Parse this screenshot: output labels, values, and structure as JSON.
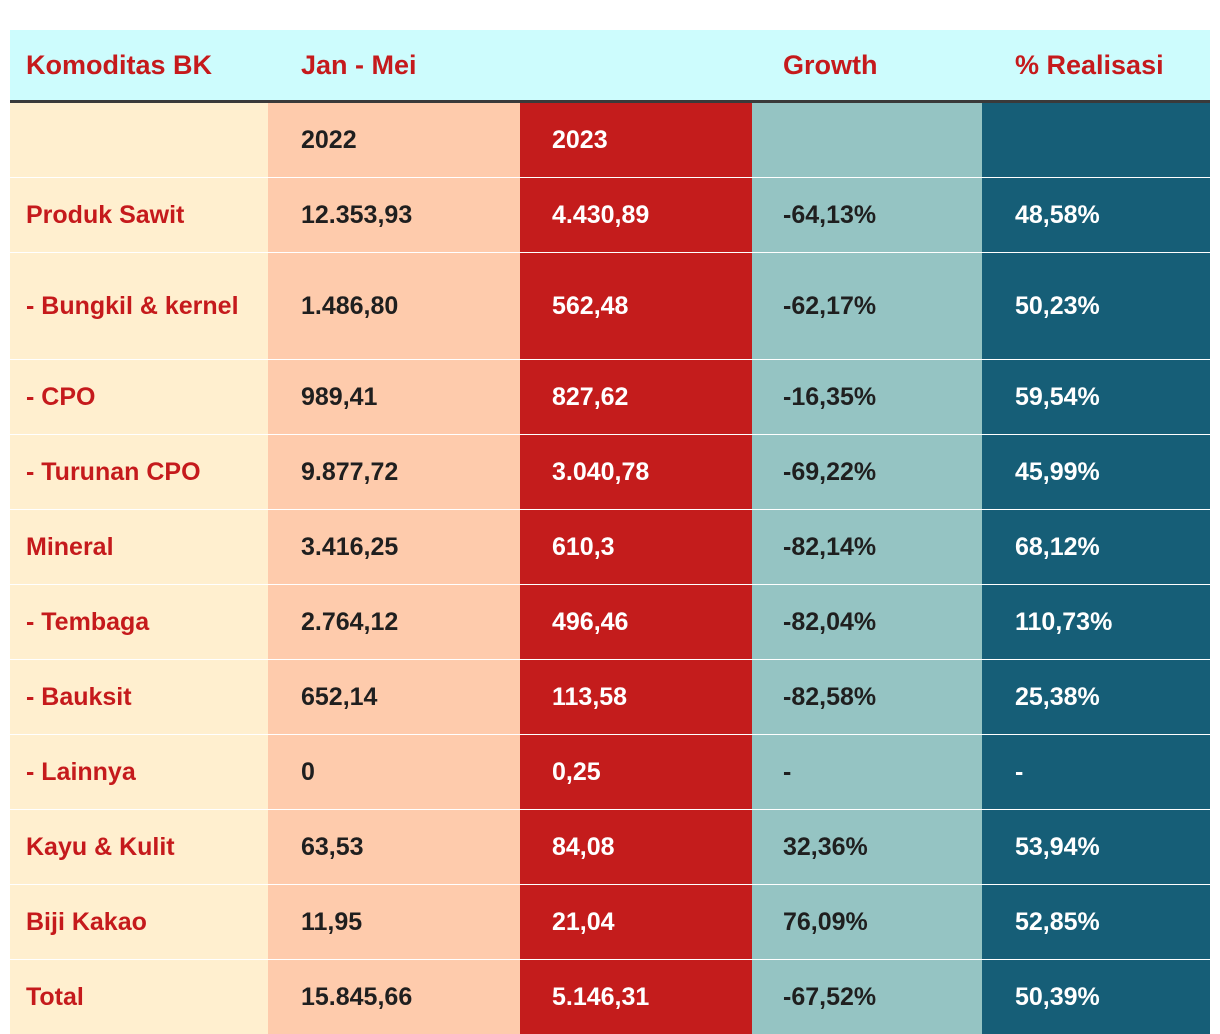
{
  "chart_data": {
    "type": "table",
    "headers": {
      "commodity": "Komoditas BK",
      "period": "Jan - Mei",
      "growth": "Growth",
      "realization": "% Realisasi"
    },
    "years": [
      "2022",
      "2023"
    ],
    "rows": [
      {
        "name": "Produk Sawit",
        "y2022": "12.353,93",
        "y2023": "4.430,89",
        "growth": "-64,13%",
        "realization": "48,58%"
      },
      {
        "name": "- Bungkil & kernel",
        "y2022": "1.486,80",
        "y2023": "562,48",
        "growth": "-62,17%",
        "realization": "50,23%"
      },
      {
        "name": "- CPO",
        "y2022": "989,41",
        "y2023": "827,62",
        "growth": "-16,35%",
        "realization": "59,54%"
      },
      {
        "name": "- Turunan CPO",
        "y2022": "9.877,72",
        "y2023": "3.040,78",
        "growth": "-69,22%",
        "realization": "45,99%"
      },
      {
        "name": "Mineral",
        "y2022": "3.416,25",
        "y2023": "610,3",
        "growth": "-82,14%",
        "realization": "68,12%"
      },
      {
        "name": "- Tembaga",
        "y2022": "2.764,12",
        "y2023": "496,46",
        "growth": "-82,04%",
        "realization": "110,73%"
      },
      {
        "name": "- Bauksit",
        "y2022": "652,14",
        "y2023": "113,58",
        "growth": "-82,58%",
        "realization": "25,38%"
      },
      {
        "name": "- Lainnya",
        "y2022": "0",
        "y2023": "0,25",
        "growth": "-",
        "realization": "-"
      },
      {
        "name": "Kayu & Kulit",
        "y2022": "63,53",
        "y2023": "84,08",
        "growth": "32,36%",
        "realization": "53,94%"
      },
      {
        "name": "Biji Kakao",
        "y2022": "11,95",
        "y2023": "21,04",
        "growth": "76,09%",
        "realization": "52,85%"
      },
      {
        "name": "Total",
        "y2022": "15.845,66",
        "y2023": "5.146,31",
        "growth": "-67,52%",
        "realization": "50,39%"
      }
    ]
  },
  "colors": {
    "header_bg": "#cdfcfd",
    "header_text": "#c51a1c",
    "col_commodity": "#ffefcf",
    "col_2022": "#fecbac",
    "col_2023": "#c41c1c",
    "col_growth": "#95c4c3",
    "col_realization": "#165e77"
  }
}
